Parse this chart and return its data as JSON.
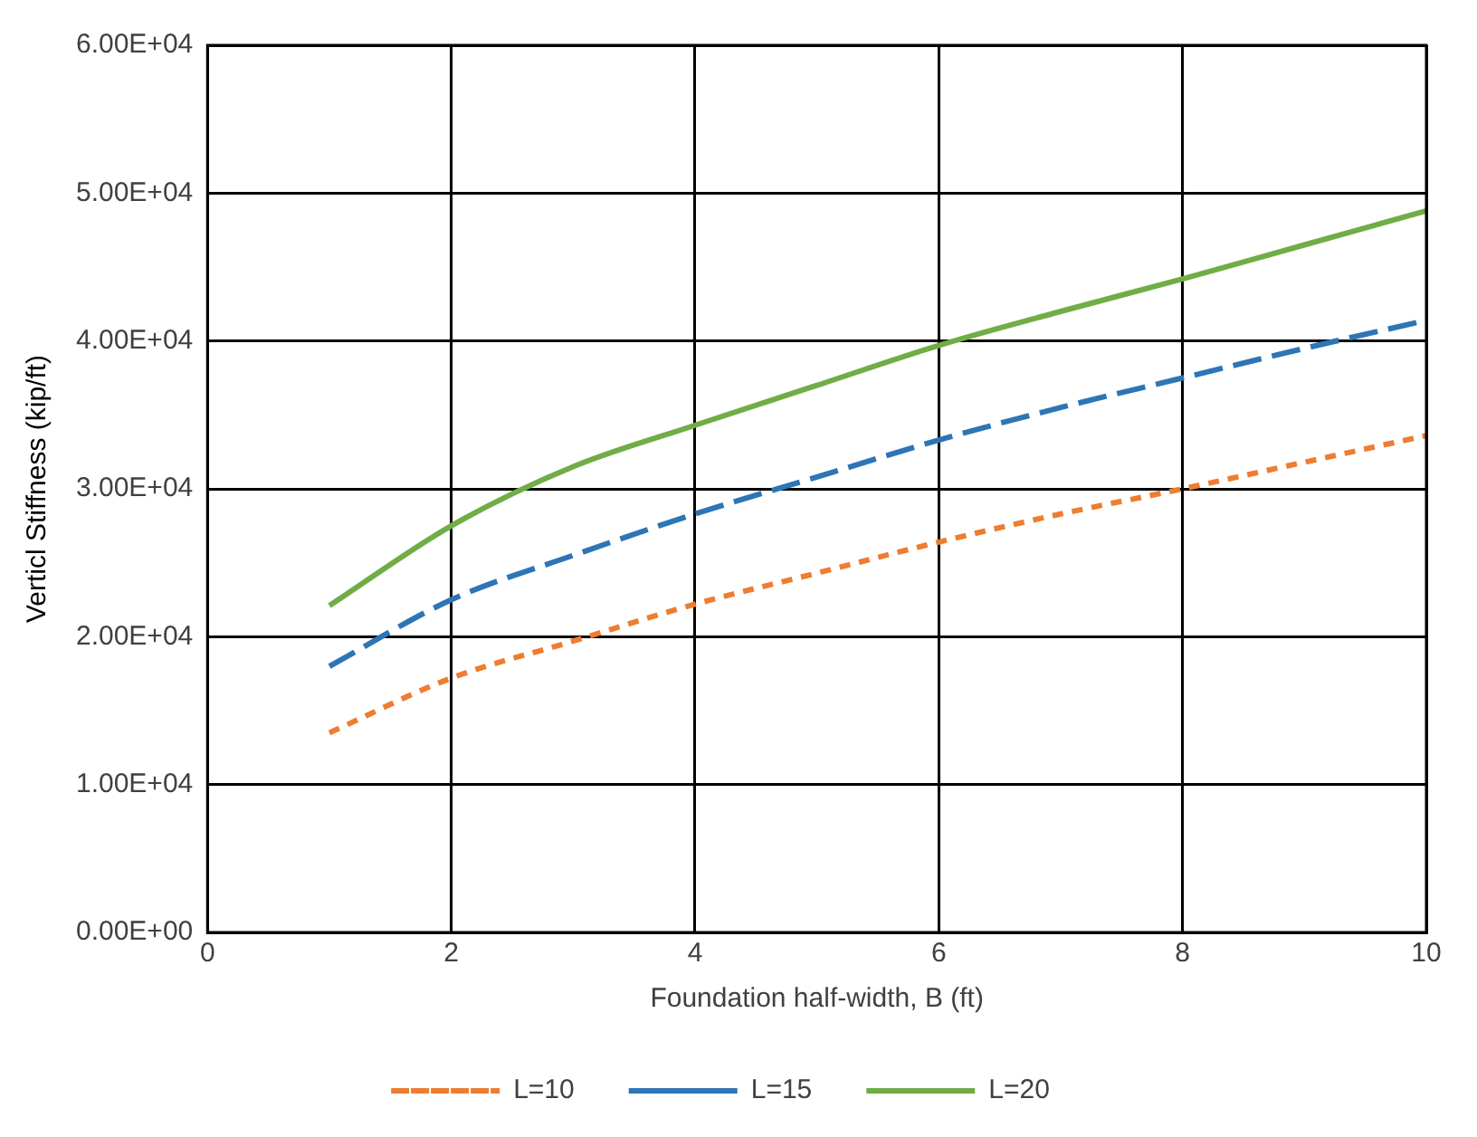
{
  "chart_data": {
    "type": "line",
    "xlabel": "Foundation half-width, B (ft)",
    "ylabel": "Verticl Stiffness (kip/ft)",
    "xlim": [
      0,
      10
    ],
    "xticks": [
      0,
      2,
      4,
      6,
      8,
      10
    ],
    "ylim": [
      0,
      60000
    ],
    "yticks": [
      {
        "value": 0,
        "label": "0.00E+00"
      },
      {
        "value": 10000,
        "label": "1.00E+04"
      },
      {
        "value": 20000,
        "label": "2.00E+04"
      },
      {
        "value": 30000,
        "label": "3.00E+04"
      },
      {
        "value": 40000,
        "label": "4.00E+04"
      },
      {
        "value": 50000,
        "label": "5.00E+04"
      },
      {
        "value": 60000,
        "label": "6.00E+04"
      }
    ],
    "x": [
      1,
      2,
      3,
      4,
      5,
      6,
      7,
      8,
      9,
      10
    ],
    "grid": true,
    "legend": "bottom",
    "marker": "none",
    "series": [
      {
        "name": "L=10",
        "color": "#ed7d31",
        "line_style": "dotted",
        "values": [
          13500,
          17200,
          19700,
          22200,
          24300,
          26400,
          28300,
          30000,
          31800,
          33600
        ]
      },
      {
        "name": "L=15",
        "color": "#2e75b6",
        "line_style": "dashed",
        "values": [
          18000,
          22500,
          25500,
          28300,
          30800,
          33300,
          35500,
          37500,
          39500,
          41400
        ]
      },
      {
        "name": "L=20",
        "color": "#70ad47",
        "line_style": "solid",
        "values": [
          22100,
          27500,
          31500,
          34300,
          37000,
          39700,
          42000,
          44200,
          46500,
          48800
        ]
      }
    ]
  }
}
